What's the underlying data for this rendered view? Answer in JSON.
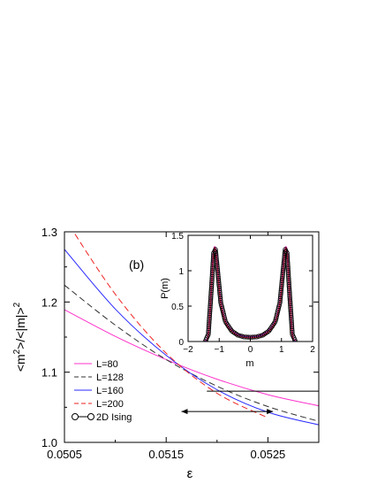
{
  "chart_data": [
    {
      "type": "line",
      "panel_label": "(b)",
      "xlabel": "ε",
      "ylabel": "<m²>/<|m|>²",
      "ylabel_main": "<m",
      "ylabel_sup1": "2",
      "ylabel_mid": ">/<|m|>",
      "ylabel_sup2": "2",
      "xlim": [
        0.0505,
        0.053
      ],
      "ylim": [
        1.0,
        1.3
      ],
      "xticks": [
        "0.0505",
        "0.0515",
        "0.0525"
      ],
      "xtick_values": [
        0.0505,
        0.0515,
        0.0525
      ],
      "yticks": [
        "1.0",
        "1.1",
        "1.2",
        "1.3"
      ],
      "ytick_values": [
        1.0,
        1.1,
        1.2,
        1.3
      ],
      "legend_position": "bottom-left",
      "series": [
        {
          "name": "L=80",
          "color": "#ff33cc",
          "dash": "solid",
          "x": [
            0.0505,
            0.051,
            0.0515,
            0.052,
            0.0525,
            0.053
          ],
          "y": [
            1.189,
            1.151,
            1.118,
            1.09,
            1.068,
            1.052
          ]
        },
        {
          "name": "L=128",
          "color": "#333333",
          "dash": "dashed",
          "x": [
            0.0505,
            0.051,
            0.0515,
            0.052,
            0.0525,
            0.053
          ],
          "y": [
            1.224,
            1.167,
            1.118,
            1.08,
            1.051,
            1.03
          ]
        },
        {
          "name": "L=160",
          "color": "#2a2aff",
          "dash": "solid",
          "x": [
            0.0505,
            0.051,
            0.0515,
            0.052,
            0.0525,
            0.053
          ],
          "y": [
            1.275,
            1.19,
            1.124,
            1.075,
            1.043,
            1.025
          ]
        },
        {
          "name": "L=200",
          "color": "#ee2222",
          "dash": "dashed",
          "x": [
            0.0505,
            0.051,
            0.0515,
            0.052,
            0.0525
          ],
          "y": [
            1.32,
            1.211,
            1.127,
            1.07,
            1.035
          ]
        },
        {
          "name": "2D Ising",
          "color": "#000000",
          "dash": "solid",
          "marker": "circle",
          "x": [
            0.052,
            0.053
          ],
          "y": [
            1.073,
            1.073
          ],
          "legend_only_marker": true
        }
      ],
      "annotations": [
        {
          "type": "horizontal-line",
          "y": 1.073,
          "x_from": 0.0519,
          "x_to": 0.053
        },
        {
          "type": "double-arrow",
          "y": 1.044,
          "x_from": 0.05165,
          "x_to": 0.05255
        }
      ]
    },
    {
      "type": "line",
      "role": "inset",
      "xlabel": "m",
      "ylabel": "P(m)",
      "xlim": [
        -2,
        2
      ],
      "ylim": [
        0,
        1.5
      ],
      "xticks": [
        "−2",
        "−1",
        "0",
        "1",
        "2"
      ],
      "xtick_values": [
        -2,
        -1,
        0,
        1,
        2
      ],
      "yticks": [
        "0",
        "0.5",
        "1",
        "1.5"
      ],
      "ytick_values": [
        0,
        0.5,
        1,
        1.5
      ],
      "series": [
        {
          "name": "P(m) curves",
          "colors": [
            "#ff33cc",
            "#333333",
            "#2a2aff",
            "#ee2222"
          ],
          "x": [
            -1.45,
            -1.35,
            -1.25,
            -1.18,
            -1.12,
            -1.05,
            -0.95,
            -0.8,
            -0.6,
            -0.4,
            -0.2,
            0,
            0.2,
            0.4,
            0.6,
            0.8,
            0.95,
            1.05,
            1.12,
            1.18,
            1.25,
            1.35,
            1.45
          ],
          "y": [
            0.0,
            0.1,
            0.75,
            1.25,
            1.3,
            1.0,
            0.55,
            0.28,
            0.15,
            0.09,
            0.065,
            0.06,
            0.065,
            0.09,
            0.15,
            0.28,
            0.55,
            1.0,
            1.3,
            1.25,
            0.75,
            0.1,
            0.0
          ]
        },
        {
          "name": "2D Ising",
          "marker": "circle",
          "color": "#000000",
          "x": [
            -1.45,
            -1.35,
            -1.25,
            -1.18,
            -1.12,
            -1.05,
            -0.95,
            -0.8,
            -0.6,
            -0.4,
            -0.2,
            0,
            0.2,
            0.4,
            0.6,
            0.8,
            0.95,
            1.05,
            1.12,
            1.18,
            1.25,
            1.35,
            1.45
          ],
          "y": [
            0.0,
            0.1,
            0.75,
            1.25,
            1.3,
            1.0,
            0.55,
            0.28,
            0.15,
            0.09,
            0.065,
            0.06,
            0.065,
            0.09,
            0.15,
            0.28,
            0.55,
            1.0,
            1.3,
            1.25,
            0.75,
            0.1,
            0.0
          ]
        }
      ]
    }
  ]
}
